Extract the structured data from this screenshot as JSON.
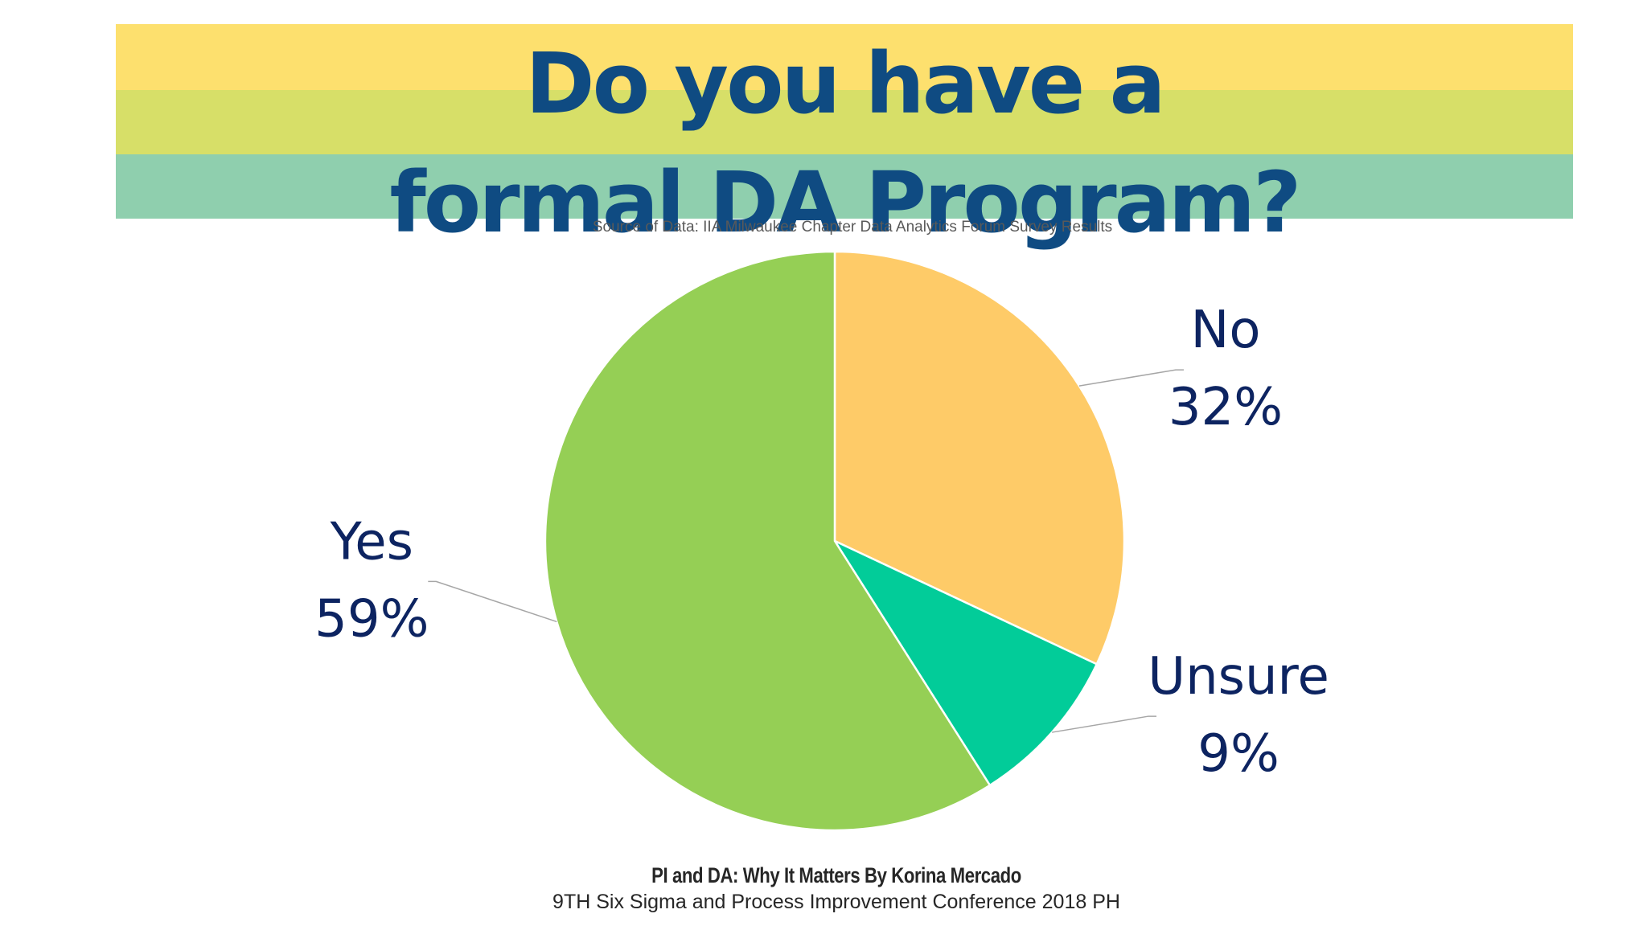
{
  "colors": {
    "band_yellow": "#fde06e",
    "band_lime": "#d7df68",
    "band_teal": "#8fcfae",
    "title_text": "#0f4b82",
    "label_text": "#0d2461",
    "slice_yes": "#95cf55",
    "slice_no": "#fecb68",
    "slice_unsure": "#02cc99",
    "leader_line": "#a6a6a6"
  },
  "header": {
    "title_line1": "Do you have a",
    "title_line2": "formal DA Program?",
    "source": "Source of Data: IIA Milwaukee Chapter Data Analytics Forum Survey Results"
  },
  "chart_data": {
    "type": "pie",
    "title": "Do you have a formal DA Program?",
    "slices": [
      {
        "label": "No",
        "value": 32,
        "display": "32%",
        "color": "#fecb68",
        "label_side": "right"
      },
      {
        "label": "Unsure",
        "value": 9,
        "display": "9%",
        "color": "#02cc99",
        "label_side": "right"
      },
      {
        "label": "Yes",
        "value": 59,
        "display": "59%",
        "color": "#95cf55",
        "label_side": "left"
      }
    ],
    "start_angle_deg": 0,
    "direction": "clockwise",
    "legend": "none"
  },
  "footer": {
    "line1": "PI and DA: Why It Matters By Korina Mercado",
    "line2": "9TH Six Sigma and Process Improvement Conference 2018 PH"
  }
}
